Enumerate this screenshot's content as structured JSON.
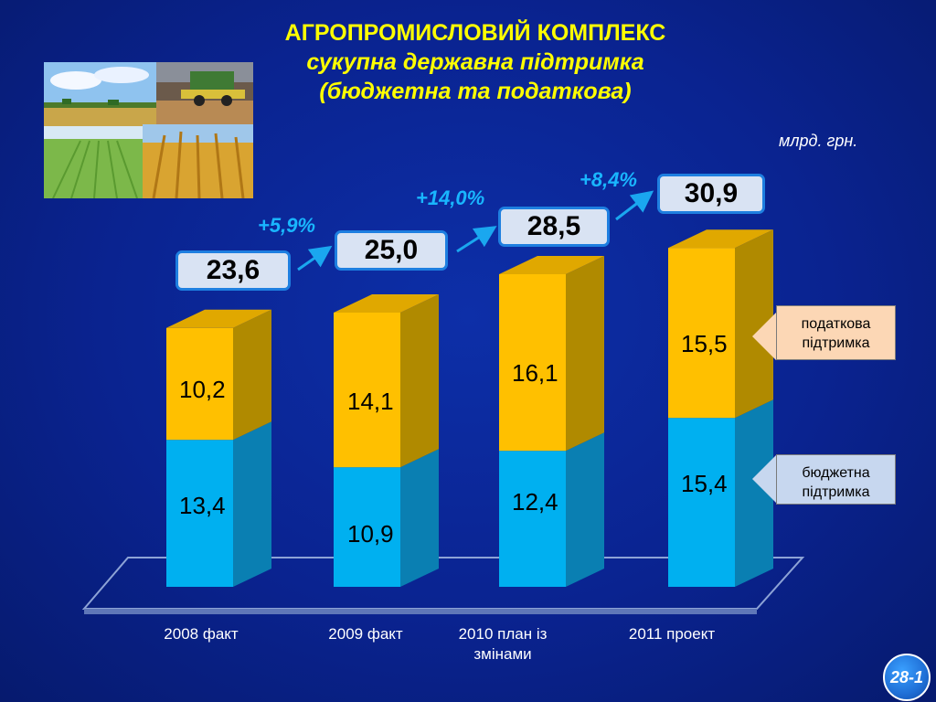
{
  "header": {
    "title_line1": "АГРОПРОМИСЛОВИЙ КОМПЛЕКС",
    "title_line2": "сукупна державна підтримка",
    "title_line3": "(бюджетна та податкова)",
    "units": "млрд. грн."
  },
  "legend": {
    "tax": "податкова підтримка",
    "budget": "бюджетна підтримка"
  },
  "colors": {
    "tax": "#ffc000",
    "budget": "#00b0f0",
    "background": "#0a2390",
    "title": "#ffff00",
    "growth": "#19b6ff"
  },
  "chart_data": {
    "type": "bar",
    "stacked": true,
    "title": "АГРОПРОМИСЛОВИЙ КОМПЛЕКС",
    "categories": [
      "2008  факт",
      "2009  факт",
      "2010  план із змінами",
      "2011  проект"
    ],
    "series": [
      {
        "name": "бюджетна підтримка",
        "values": [
          13.4,
          10.9,
          12.4,
          15.4
        ],
        "labels": [
          "13,4",
          "10,9",
          "12,4",
          "15,4"
        ]
      },
      {
        "name": "податкова підтримка",
        "values": [
          10.2,
          14.1,
          16.1,
          15.5
        ],
        "labels": [
          "10,2",
          "14,1",
          "16,1",
          "15,5"
        ]
      }
    ],
    "totals": [
      "23,6",
      "25,0",
      "28,5",
      "30,9"
    ],
    "growth": [
      "+5,9%",
      "+14,0%",
      "+8,4%"
    ],
    "ylim": [
      0,
      32
    ],
    "grid": false
  },
  "badge": "28-1"
}
